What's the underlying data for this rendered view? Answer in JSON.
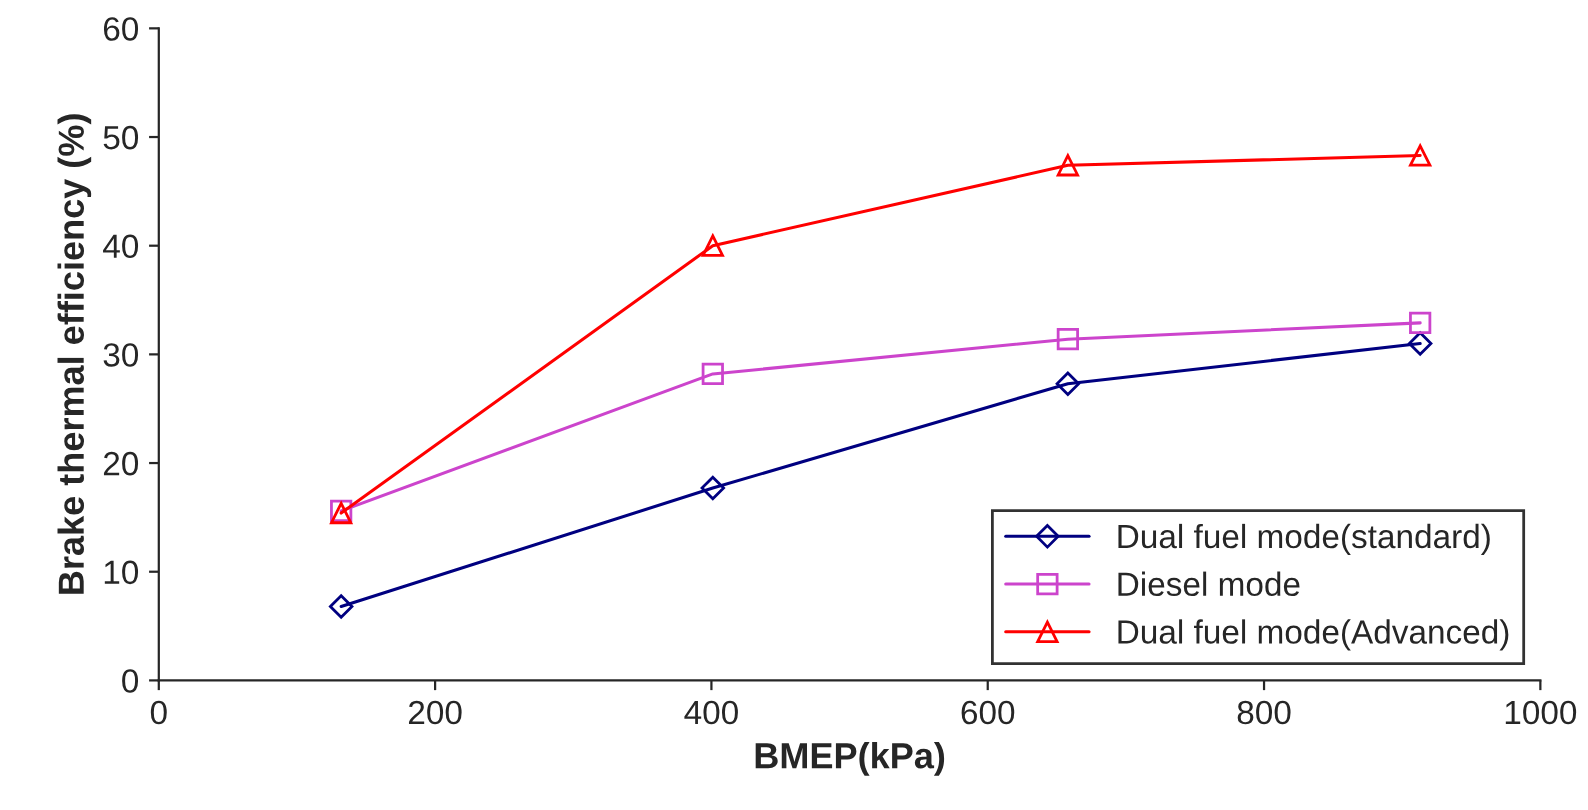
{
  "chart_data": {
    "type": "line",
    "xlabel": "BMEP(kPa)",
    "ylabel": "Brake thermal efficiency (%)",
    "x": [
      132,
      401,
      658,
      913
    ],
    "series": [
      {
        "name": "Dual fuel mode(standard)",
        "color": "#000080",
        "marker": "diamond",
        "values": [
          6.8,
          17.7,
          27.3,
          31.0
        ]
      },
      {
        "name": "Diesel mode",
        "color": "#cc44cc",
        "marker": "square",
        "values": [
          15.6,
          28.2,
          31.4,
          32.9
        ]
      },
      {
        "name": "Dual fuel mode(Advanced)",
        "color": "#ff0000",
        "marker": "triangle",
        "values": [
          15.4,
          40.0,
          47.4,
          48.3
        ]
      }
    ],
    "xlim": [
      0,
      1000
    ],
    "xticks": [
      0,
      200,
      400,
      600,
      800,
      1000
    ],
    "ylim": [
      0,
      60
    ],
    "yticks": [
      0,
      10,
      20,
      30,
      40,
      50,
      60
    ],
    "grid": false,
    "legend": "bottom right",
    "line_style": "solid"
  }
}
